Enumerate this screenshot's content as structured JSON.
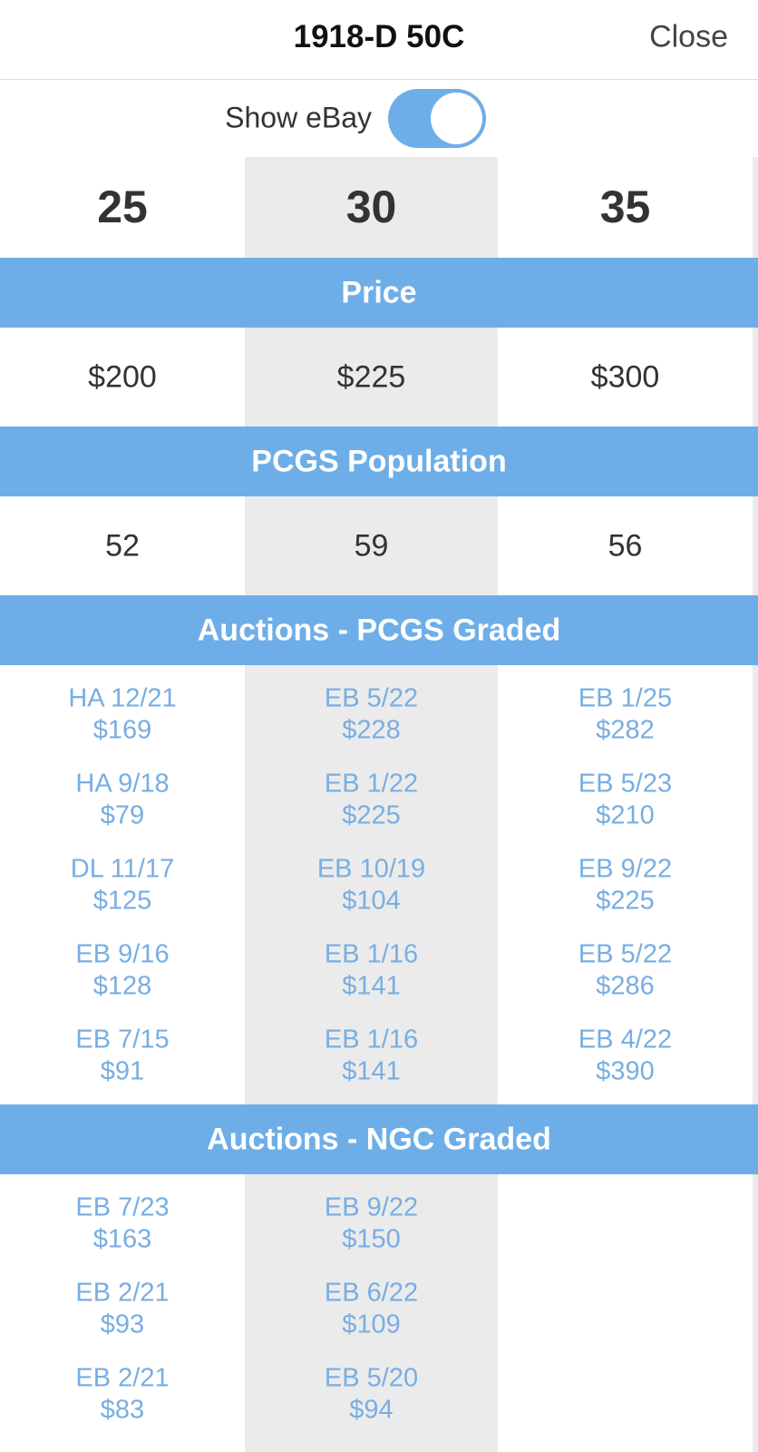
{
  "header": {
    "title": "1918-D 50C",
    "close": "Close"
  },
  "toggle": {
    "label": "Show eBay",
    "on": true
  },
  "grades": [
    "25",
    "30",
    "35"
  ],
  "sections": [
    {
      "title": "Price",
      "values": [
        "$200",
        "$225",
        "$300"
      ]
    },
    {
      "title": "PCGS Population",
      "values": [
        "52",
        "59",
        "56"
      ]
    },
    {
      "title": "Auctions - PCGS Graded",
      "columns": [
        [
          {
            "label": "HA 12/21",
            "price": "$169"
          },
          {
            "label": "HA 9/18",
            "price": "$79"
          },
          {
            "label": "DL 11/17",
            "price": "$125"
          },
          {
            "label": "EB 9/16",
            "price": "$128"
          },
          {
            "label": "EB 7/15",
            "price": "$91"
          }
        ],
        [
          {
            "label": "EB 5/22",
            "price": "$228"
          },
          {
            "label": "EB 1/22",
            "price": "$225"
          },
          {
            "label": "EB 10/19",
            "price": "$104"
          },
          {
            "label": "EB 1/16",
            "price": "$141"
          },
          {
            "label": "EB 1/16",
            "price": "$141"
          }
        ],
        [
          {
            "label": "EB 1/25",
            "price": "$282"
          },
          {
            "label": "EB 5/23",
            "price": "$210"
          },
          {
            "label": "EB 9/22",
            "price": "$225"
          },
          {
            "label": "EB 5/22",
            "price": "$286"
          },
          {
            "label": "EB 4/22",
            "price": "$390"
          }
        ]
      ]
    },
    {
      "title": "Auctions - NGC Graded",
      "columns": [
        [
          {
            "label": "EB 7/23",
            "price": "$163"
          },
          {
            "label": "EB 2/21",
            "price": "$93"
          },
          {
            "label": "EB 2/21",
            "price": "$83"
          }
        ],
        [
          {
            "label": "EB 9/22",
            "price": "$150"
          },
          {
            "label": "EB 6/22",
            "price": "$109"
          },
          {
            "label": "EB 5/20",
            "price": "$94"
          }
        ],
        []
      ]
    }
  ]
}
